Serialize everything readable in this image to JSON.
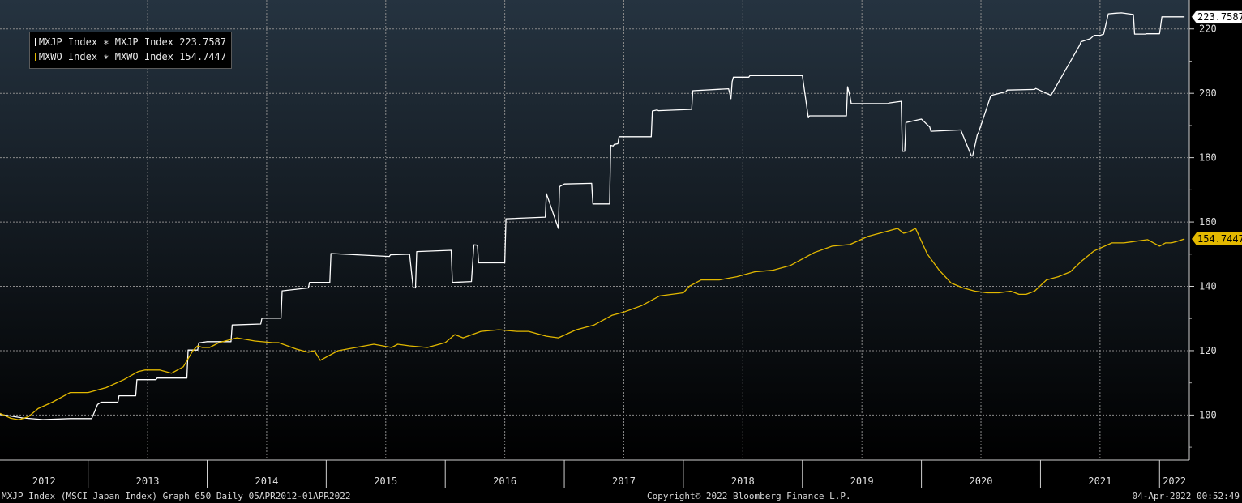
{
  "footer": {
    "left": "MXJP Index (MSCI Japan Index) Graph 650  Daily 05APR2012-01APR2022",
    "center": "Copyright© 2022 Bloomberg Finance L.P.",
    "right": "04-Apr-2022 00:52:49"
  },
  "legend": {
    "entries": [
      {
        "label": "MXJP Index ∗ MXJP Index  223.7587",
        "color": "#ffffff"
      },
      {
        "label": "MXWO Index ∗ MXWO Index 154.7447",
        "color": "#e2b800"
      }
    ]
  },
  "colors": {
    "background_top": "#253340",
    "background_bottom": "#000000",
    "grid": "#8a8a8a",
    "mxjp": "#ffffff",
    "mxwo": "#e2b800",
    "axis_text": "#e0e0e0"
  },
  "chart_data": {
    "type": "line",
    "title": "",
    "xlabel": "",
    "ylabel": "",
    "x_range": [
      2012.26,
      2022.25
    ],
    "ylim": [
      86,
      229
    ],
    "y_ticks": [
      100,
      120,
      140,
      160,
      180,
      200,
      220
    ],
    "x_tick_labels": [
      "2012",
      "2013",
      "2014",
      "2015",
      "2016",
      "2017",
      "2018",
      "2019",
      "2020",
      "2021",
      "2022"
    ],
    "grid": true,
    "legend_position": "top-left",
    "series": [
      {
        "name": "MXJP Index",
        "color": "#ffffff",
        "last_value_label": "223.7587",
        "x": [
          2012.26,
          2012.45,
          2012.62,
          2012.85,
          2013.03,
          2013.08,
          2013.11,
          2013.25,
          2013.26,
          2013.4,
          2013.41,
          2013.57,
          2013.58,
          2013.83,
          2013.84,
          2013.92,
          2013.93,
          2014.0,
          2014.2,
          2014.21,
          2014.45,
          2014.46,
          2014.62,
          2014.63,
          2014.85,
          2014.86,
          2015.03,
          2015.04,
          2015.53,
          2015.54,
          2015.7,
          2015.73,
          2015.75,
          2015.76,
          2016.05,
          2016.06,
          2016.22,
          2016.24,
          2016.27,
          2016.28,
          2016.5,
          2016.51,
          2016.84,
          2016.85,
          2016.95,
          2016.96,
          2017.0,
          2017.23,
          2017.24,
          2017.38,
          2017.39,
          2017.41,
          2017.42,
          2017.45,
          2017.46,
          2017.73,
          2017.74,
          2017.78,
          2017.79,
          2018.07,
          2018.08,
          2018.38,
          2018.4,
          2018.41,
          2018.42,
          2018.55,
          2018.56,
          2019.0,
          2019.05,
          2019.06,
          2019.37,
          2019.38,
          2019.4,
          2019.41,
          2019.72,
          2019.73,
          2019.83,
          2019.84,
          2019.86,
          2019.87,
          2020.0,
          2020.07,
          2020.08,
          2020.32,
          2020.33,
          2020.42,
          2020.43,
          2020.47,
          2020.48,
          2020.58,
          2020.59,
          2020.71,
          2020.72,
          2020.95,
          2020.96,
          2021.08,
          2021.09,
          2021.33,
          2021.34,
          2021.42,
          2021.45,
          2021.5,
          2021.53,
          2021.57,
          2021.63,
          2021.68,
          2021.78,
          2021.79,
          2021.88,
          2021.89,
          2022.0,
          2022.02,
          2022.1,
          2022.11,
          2022.2,
          2022.21
        ],
        "y": [
          100.2,
          99.1,
          98.6,
          98.9,
          98.9,
          103.3,
          104.0,
          104.0,
          106.0,
          106.0,
          111.0,
          111.0,
          111.5,
          111.5,
          120.2,
          120.2,
          122.4,
          122.8,
          122.8,
          128.0,
          128.3,
          130.1,
          130.1,
          138.6,
          139.5,
          141.2,
          141.2,
          150.2,
          149.3,
          149.8,
          150.0,
          139.6,
          139.5,
          150.8,
          151.2,
          141.2,
          141.5,
          152.9,
          152.8,
          147.3,
          147.3,
          161.0,
          161.5,
          168.8,
          158.0,
          171.0,
          171.8,
          172.0,
          165.6,
          165.6,
          183.8,
          183.6,
          184.1,
          184.3,
          186.5,
          186.5,
          194.5,
          194.8,
          194.6,
          195.0,
          200.8,
          201.4,
          198.3,
          203.6,
          205.0,
          205.0,
          205.5,
          205.5,
          192.4,
          193.0,
          193.0,
          202.0,
          199.0,
          196.8,
          196.8,
          197.0,
          197.5,
          182.0,
          182.0,
          190.9,
          192.0,
          189.5,
          188.2,
          188.6,
          188.6,
          180.5,
          180.5,
          187.2,
          187.8,
          199.0,
          199.4,
          200.5,
          201.0,
          201.2,
          201.5,
          199.5,
          199.5,
          215.0,
          216.0,
          217.0,
          218.0,
          218.0,
          218.4,
          224.7,
          224.9,
          225.0,
          224.5,
          218.4,
          218.4,
          218.5,
          218.5,
          223.76,
          223.76,
          223.76,
          223.76,
          223.76
        ]
      },
      {
        "name": "MXWO Index",
        "color": "#e2b800",
        "last_value_label": "154.7447",
        "x": [
          2012.26,
          2012.35,
          2012.42,
          2012.5,
          2012.58,
          2012.7,
          2012.85,
          2013.0,
          2013.15,
          2013.3,
          2013.42,
          2013.48,
          2013.6,
          2013.7,
          2013.8,
          2013.88,
          2013.92,
          2013.96,
          2014.02,
          2014.1,
          2014.25,
          2014.4,
          2014.55,
          2014.6,
          2014.75,
          2014.85,
          2014.9,
          2014.95,
          2015.1,
          2015.25,
          2015.4,
          2015.55,
          2015.6,
          2015.7,
          2015.85,
          2016.0,
          2016.08,
          2016.15,
          2016.3,
          2016.45,
          2016.6,
          2016.7,
          2016.85,
          2016.95,
          2017.1,
          2017.25,
          2017.4,
          2017.5,
          2017.65,
          2017.8,
          2018.0,
          2018.05,
          2018.15,
          2018.3,
          2018.45,
          2018.6,
          2018.75,
          2018.9,
          2019.0,
          2019.1,
          2019.25,
          2019.4,
          2019.55,
          2019.7,
          2019.8,
          2019.85,
          2019.9,
          2019.95,
          2020.05,
          2020.15,
          2020.25,
          2020.35,
          2020.45,
          2020.55,
          2020.65,
          2020.75,
          2020.82,
          2020.88,
          2020.95,
          2021.05,
          2021.15,
          2021.25,
          2021.35,
          2021.45,
          2021.6,
          2021.7,
          2021.8,
          2021.9,
          2022.0,
          2022.05,
          2022.1,
          2022.15,
          2022.21
        ],
        "y": [
          100.5,
          99.0,
          98.5,
          99.5,
          102.0,
          104.0,
          107.0,
          107.0,
          108.5,
          111.0,
          113.5,
          114.0,
          114.0,
          113.0,
          115.0,
          120.0,
          121.5,
          121.0,
          121.0,
          122.5,
          124.0,
          123.0,
          122.5,
          122.5,
          120.5,
          119.5,
          120.0,
          117.0,
          120.0,
          121.0,
          122.0,
          121.0,
          122.0,
          121.5,
          121.0,
          122.5,
          125.0,
          124.0,
          126.0,
          126.5,
          126.0,
          126.0,
          124.5,
          124.0,
          126.5,
          128.0,
          131.0,
          132.0,
          134.0,
          137.0,
          138.0,
          140.0,
          142.0,
          142.0,
          143.0,
          144.5,
          145.0,
          146.5,
          148.5,
          150.5,
          152.5,
          153.0,
          155.5,
          157.0,
          158.0,
          156.5,
          157.0,
          158.0,
          150.0,
          145.0,
          141.0,
          139.5,
          138.5,
          138.0,
          138.0,
          138.5,
          137.5,
          137.5,
          138.5,
          142.0,
          143.0,
          144.5,
          148.0,
          151.0,
          153.5,
          153.5,
          154.0,
          154.5,
          152.5,
          153.5,
          153.5,
          154.0,
          154.74
        ]
      }
    ]
  }
}
